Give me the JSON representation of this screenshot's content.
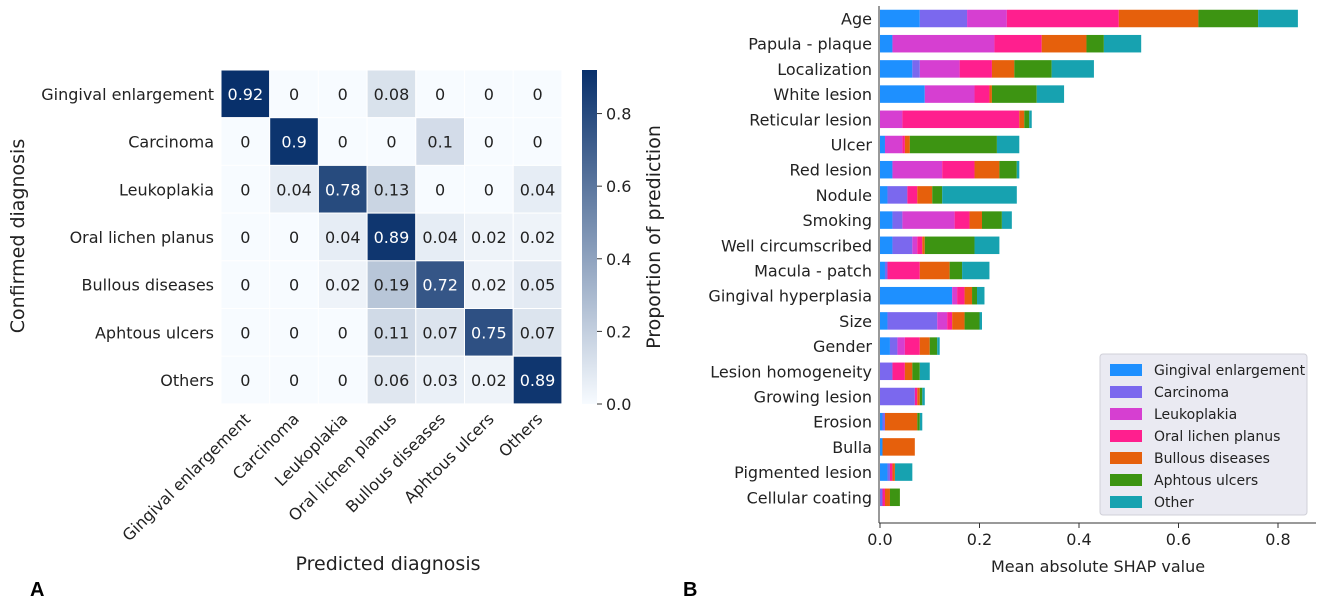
{
  "colors": {
    "heat_low": "#f7fbff",
    "heat_high": "#08306b",
    "series": [
      "#1e90ff",
      "#7b68ee",
      "#d63fd1",
      "#ff1f8e",
      "#e6600c",
      "#3d9412",
      "#17a2b0"
    ],
    "legend_bg": "#eaeaf2"
  },
  "panels": {
    "a": "A",
    "b": "B"
  },
  "chart_data": [
    {
      "type": "heatmap",
      "rows": [
        "Gingival enlargement",
        "Carcinoma",
        "Leukoplakia",
        "Oral lichen planus",
        "Bullous diseases",
        "Aphtous ulcers",
        "Others"
      ],
      "columns": [
        "Gingival enlargement",
        "Carcinoma",
        "Leukoplakia",
        "Oral lichen planus",
        "Bullous diseases",
        "Aphtous ulcers",
        "Others"
      ],
      "values": [
        [
          0.92,
          0,
          0,
          0.08,
          0,
          0,
          0
        ],
        [
          0,
          0.9,
          0,
          0,
          0.1,
          0,
          0
        ],
        [
          0,
          0.04,
          0.78,
          0.13,
          0,
          0,
          0.04
        ],
        [
          0,
          0,
          0.04,
          0.89,
          0.04,
          0.02,
          0.02
        ],
        [
          0,
          0,
          0.02,
          0.19,
          0.72,
          0.02,
          0.05
        ],
        [
          0,
          0,
          0,
          0.11,
          0.07,
          0.75,
          0.07
        ],
        [
          0,
          0,
          0,
          0.06,
          0.03,
          0.02,
          0.89
        ]
      ],
      "xlabel": "Predicted diagnosis",
      "ylabel": "Confirmed diagnosis",
      "colorbar_label": "Proportion of prediction",
      "colorbar_ticks": [
        "0.0",
        "0.2",
        "0.4",
        "0.6",
        "0.8"
      ],
      "colorbar_range": [
        0,
        0.92
      ]
    },
    {
      "type": "bar",
      "orientation": "horizontal",
      "stacked": true,
      "categories": [
        "Age",
        "Papula - plaque",
        "Localization",
        "White lesion",
        "Reticular lesion",
        "Ulcer",
        "Red lesion",
        "Nodule",
        "Smoking",
        "Well circumscribed",
        "Macula - patch",
        "Gingival hyperplasia",
        "Size",
        "Gender",
        "Lesion homogeneity",
        "Growing lesion",
        "Erosion",
        "Bulla",
        "Pigmented lesion",
        "Cellular coating"
      ],
      "series": [
        {
          "name": "Gingival enlargement",
          "values": [
            0.08,
            0.025,
            0.065,
            0.09,
            0.0,
            0.01,
            0.025,
            0.015,
            0.025,
            0.025,
            0.01,
            0.145,
            0.015,
            0.02,
            0.0,
            0.0,
            0.005,
            0.005,
            0.015,
            0.0
          ]
        },
        {
          "name": "Carcinoma",
          "values": [
            0.095,
            0.0,
            0.015,
            0.0,
            0.0,
            0.0,
            0.0,
            0.04,
            0.02,
            0.04,
            0.005,
            0.0,
            0.1,
            0.015,
            0.025,
            0.07,
            0.005,
            0.0,
            0.005,
            0.005
          ]
        },
        {
          "name": "Leukoplakia",
          "values": [
            0.08,
            0.205,
            0.08,
            0.1,
            0.045,
            0.035,
            0.1,
            0.0,
            0.105,
            0.01,
            0.0,
            0.01,
            0.02,
            0.015,
            0.0,
            0.0,
            0.0,
            0.0,
            0.0,
            0.0
          ]
        },
        {
          "name": "Oral lichen planus",
          "values": [
            0.225,
            0.095,
            0.065,
            0.03,
            0.235,
            0.005,
            0.065,
            0.02,
            0.03,
            0.01,
            0.065,
            0.015,
            0.01,
            0.03,
            0.025,
            0.005,
            0.0,
            0.0,
            0.005,
            0.005
          ]
        },
        {
          "name": "Bullous diseases",
          "values": [
            0.16,
            0.09,
            0.045,
            0.005,
            0.01,
            0.01,
            0.05,
            0.03,
            0.025,
            0.005,
            0.06,
            0.015,
            0.025,
            0.02,
            0.015,
            0.005,
            0.065,
            0.065,
            0.005,
            0.01
          ]
        },
        {
          "name": "Aphtous ulcers",
          "values": [
            0.12,
            0.035,
            0.075,
            0.09,
            0.01,
            0.175,
            0.035,
            0.02,
            0.04,
            0.1,
            0.025,
            0.01,
            0.03,
            0.015,
            0.015,
            0.005,
            0.005,
            0.0,
            0.0,
            0.02
          ]
        },
        {
          "name": "Other",
          "values": [
            0.08,
            0.075,
            0.085,
            0.055,
            0.005,
            0.045,
            0.005,
            0.15,
            0.02,
            0.05,
            0.055,
            0.015,
            0.005,
            0.005,
            0.02,
            0.005,
            0.005,
            0.0,
            0.035,
            0.0
          ]
        }
      ],
      "xlabel": "Mean absolute SHAP value",
      "xlim": [
        0,
        0.88
      ],
      "xticks": [
        "0.0",
        "0.2",
        "0.4",
        "0.6",
        "0.8"
      ],
      "legend_position": "lower right"
    }
  ]
}
